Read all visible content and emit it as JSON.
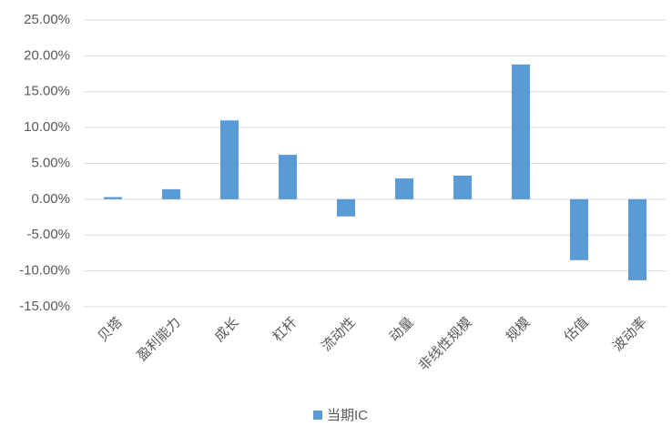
{
  "chart_data": {
    "type": "bar",
    "categories": [
      "贝塔",
      "盈利能力",
      "成长",
      "杠杆",
      "流动性",
      "动量",
      "非线性规模",
      "规模",
      "估值",
      "波动率"
    ],
    "series": [
      {
        "name": "当期IC",
        "color": "#5b9bd5",
        "values": [
          0.3,
          1.4,
          11.0,
          6.2,
          -2.4,
          2.9,
          3.3,
          18.8,
          -8.5,
          -11.3
        ]
      }
    ],
    "ylim": [
      -15,
      25
    ],
    "yticks": [
      {
        "value": -15,
        "label": "-15.00%"
      },
      {
        "value": -10,
        "label": "-10.00%"
      },
      {
        "value": -5,
        "label": "-5.00%"
      },
      {
        "value": 0,
        "label": "0.00%"
      },
      {
        "value": 5,
        "label": "5.00%"
      },
      {
        "value": 10,
        "label": "10.00%"
      },
      {
        "value": 15,
        "label": "15.00%"
      },
      {
        "value": 20,
        "label": "20.00%"
      },
      {
        "value": 25,
        "label": "25.00%"
      }
    ],
    "grid": true,
    "legend": "bottom"
  }
}
